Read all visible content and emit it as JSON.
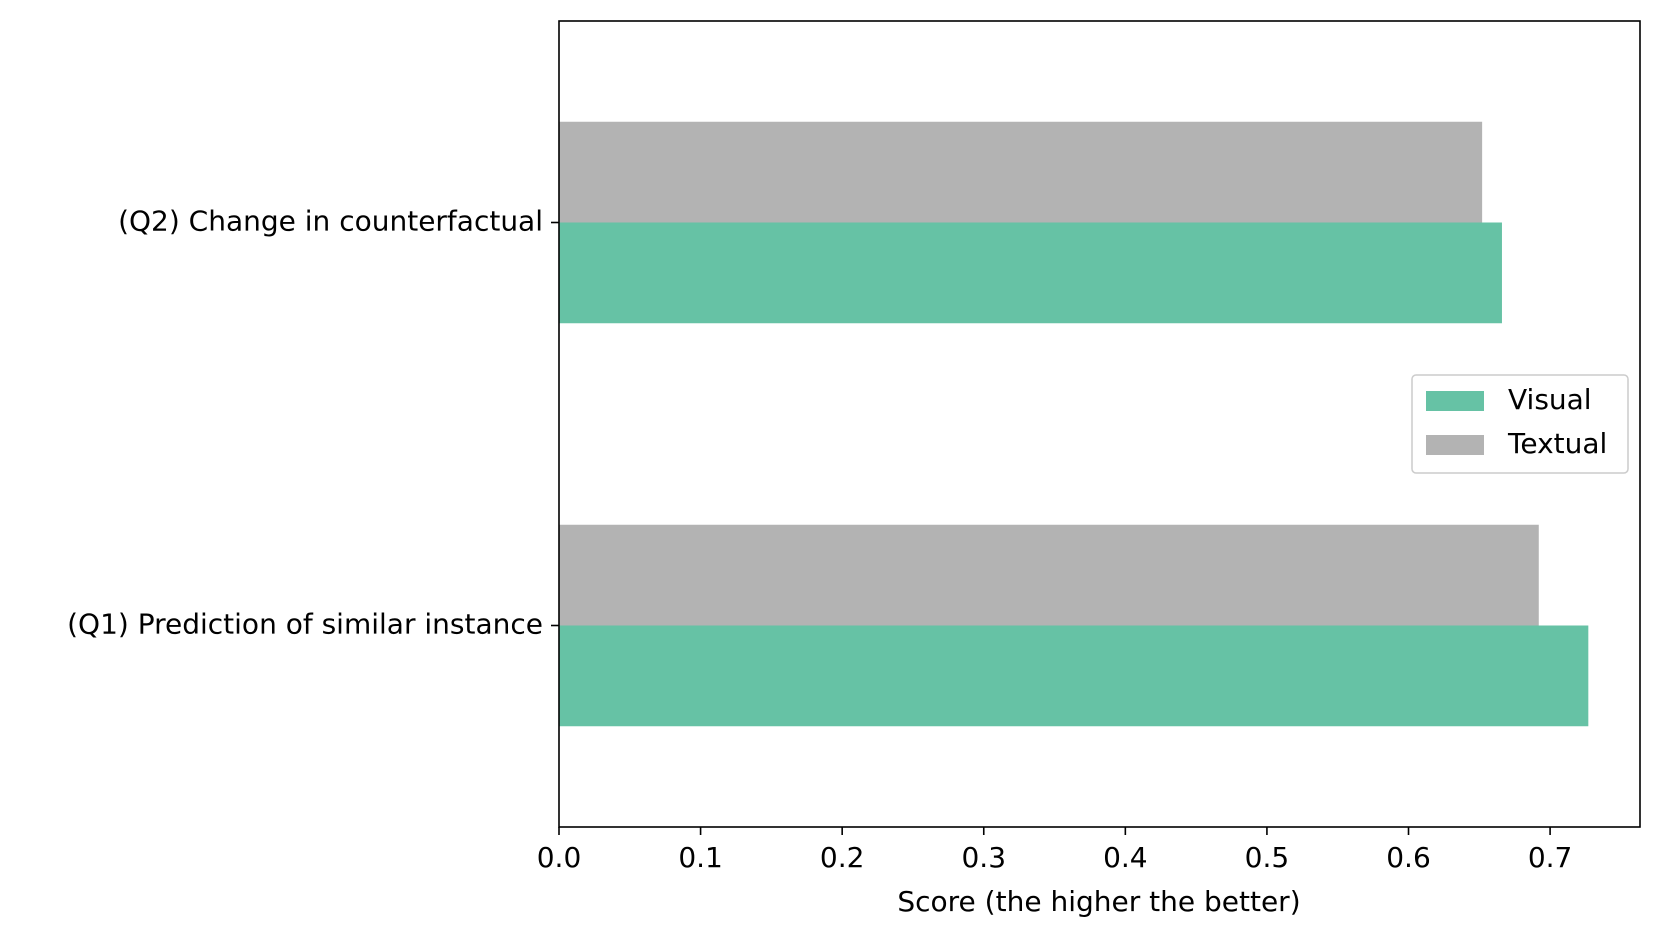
{
  "chart_data": {
    "type": "barh",
    "x_label": "Score (the higher the better)",
    "categories": [
      "(Q1) Prediction of similar instance",
      "(Q2) Change in counterfactual"
    ],
    "series": [
      {
        "name": "Visual",
        "color": "#66c2a5",
        "values": [
          0.727,
          0.666
        ]
      },
      {
        "name": "Textual",
        "color": "#b3b3b3",
        "values": [
          0.692,
          0.652
        ]
      }
    ],
    "xlim": [
      0,
      0.7635
    ],
    "xticks": [
      {
        "value": 0,
        "label": "0.0"
      },
      0.1,
      0.2,
      0.3,
      0.4,
      0.5,
      0.6,
      0.7
    ],
    "legend": "center right"
  }
}
